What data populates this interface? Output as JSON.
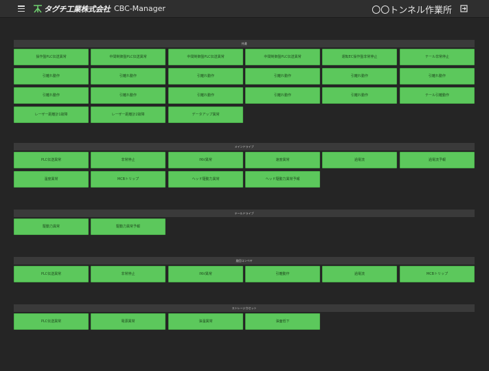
{
  "header": {
    "logo_text": "タグチ工業株式会社",
    "app_name": "CBC-Manager",
    "site_name": "〇〇トンネル作業所",
    "icons": {
      "menu": "menu-icon",
      "logout": "logout-icon"
    }
  },
  "colors": {
    "background": "#252525",
    "topbar": "#2f2f2f",
    "section_header": "#3a3a3a",
    "button_green": "#5cc85c",
    "logo_green": "#6fcf6f"
  },
  "sections": [
    {
      "title": "共通",
      "buttons": [
        "操作盤PLC伝送異常",
        "中間制御盤PLC伝送異常",
        "中間制御盤PLC伝送異常",
        "中間制御盤PLC伝送異常",
        "運転EC操作盤非常停止",
        "テール非常停止",
        "引離れ動作",
        "引離れ動作",
        "引離れ動作",
        "引離れ動作",
        "引離れ動作",
        "引離れ動作",
        "引離れ動作",
        "引離れ動作",
        "引離れ動作",
        "引離れ動作",
        "引離れ動作",
        "テール引離動作",
        "レーザー距離計1故障",
        "レーザー距離計2故障",
        "データアップ異常"
      ]
    },
    {
      "title": "メインドライブ",
      "buttons": [
        "PLC伝送異常",
        "非常停止",
        "INV異常",
        "速度異常",
        "過電流",
        "過電流予報",
        "温度異常",
        "MCBトリップ",
        "ヘッド駆動力異常",
        "ヘッド駆動力異常予報"
      ]
    },
    {
      "title": "テールドライブ",
      "buttons": [
        "駆動力異常",
        "駆動力異常予報"
      ]
    },
    {
      "title": "旋回コンベヤ",
      "buttons": [
        "PLC伝送異常",
        "非常停止",
        "INV異常",
        "引離動作",
        "過電流",
        "MCBトリップ"
      ]
    },
    {
      "title": "ストレージカセット",
      "buttons": [
        "PLC伝送異常",
        "電源異常",
        "油温異常",
        "油面低下"
      ]
    }
  ]
}
